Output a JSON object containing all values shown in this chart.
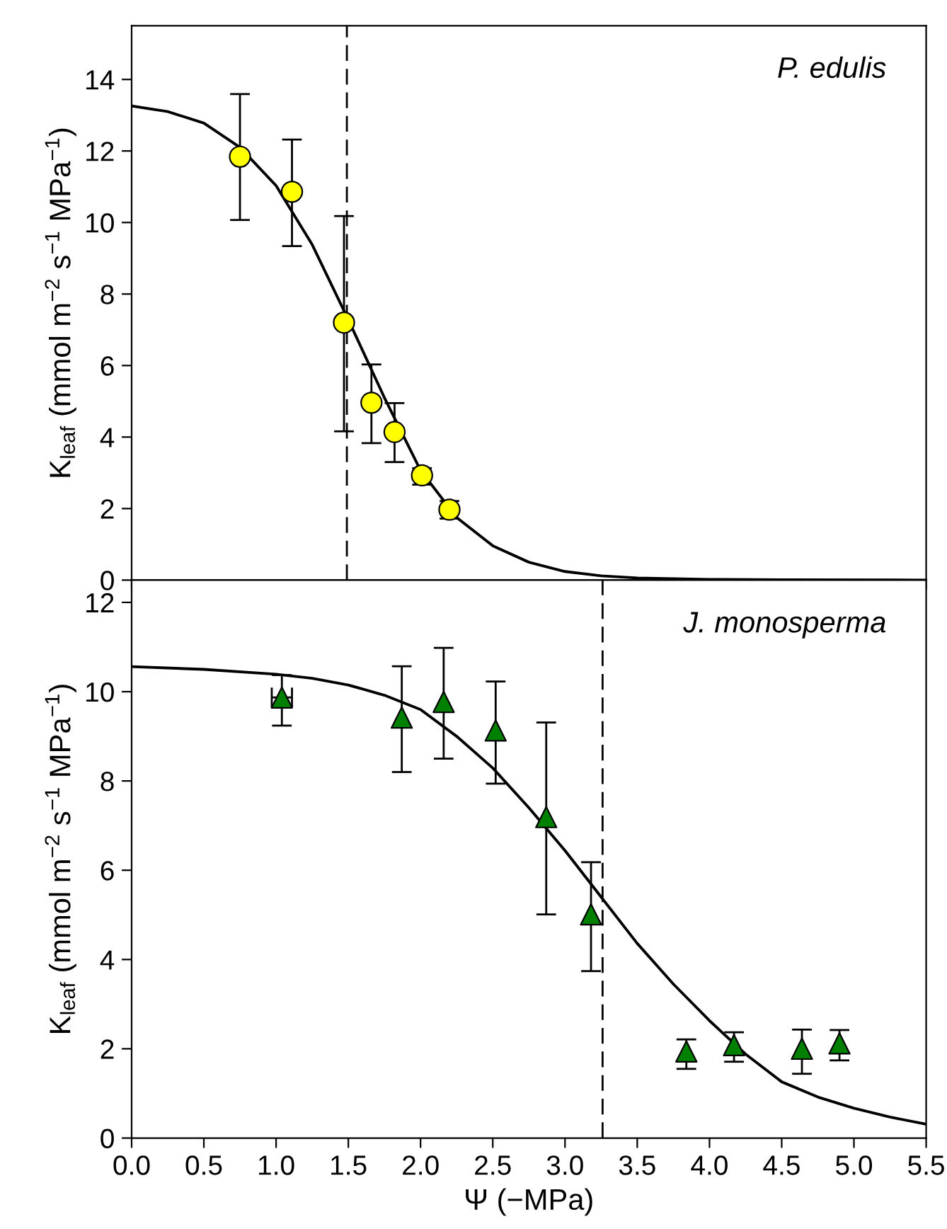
{
  "chart_data": [
    {
      "type": "scatter",
      "annotations": [
        "P. edulis"
      ],
      "ylabel": "K$_{leaf}$ (mmol m$^{−2}$ s$^{−1}$ MPa$^{−1}$)",
      "xlim": [
        0,
        5.5
      ],
      "ylim": [
        0,
        15.5
      ],
      "xticks": [
        {
          "value": 0,
          "label": null
        },
        {
          "value": 0.5,
          "label": null
        },
        {
          "value": 1,
          "label": null
        },
        {
          "value": 1.5,
          "label": null
        },
        {
          "value": 2,
          "label": null
        },
        {
          "value": 2.5,
          "label": null
        },
        {
          "value": 3,
          "label": null
        },
        {
          "value": 3.5,
          "label": null
        },
        {
          "value": 4,
          "label": null
        },
        {
          "value": 4.5,
          "label": null
        },
        {
          "value": 5,
          "label": null
        },
        {
          "value": 5.5,
          "label": null
        }
      ],
      "yticks": [
        0,
        2,
        4,
        6,
        8,
        10,
        12,
        14
      ],
      "tick_labels": "y",
      "grid": false,
      "ref_lines": [
        {
          "axis": "x",
          "value": 1.49,
          "label": null,
          "color": "#000000",
          "line_style": "dashed"
        }
      ],
      "series": [
        {
          "color": "#ffff00",
          "marker": "circle",
          "x": [
            0.75,
            1.11,
            1.47,
            1.66,
            1.82,
            2.01,
            2.2
          ],
          "values": [
            11.84,
            10.86,
            7.2,
            4.96,
            4.14,
            2.93,
            1.97
          ],
          "errors": [
            [
              10.07,
              13.59
            ],
            [
              9.34,
              12.32
            ],
            [
              4.16,
              10.18
            ],
            [
              3.83,
              6.03
            ],
            [
              3.3,
              4.95
            ],
            [
              2.67,
              3.13
            ],
            [
              1.72,
              2.21
            ]
          ]
        },
        {
          "type": "line",
          "color": "#000000",
          "marker": "none",
          "line_style": "solid",
          "x": [
            0,
            0.25,
            0.5,
            0.75,
            1.0,
            1.25,
            1.5,
            1.75,
            2.0,
            2.25,
            2.5,
            2.75,
            3.0,
            3.25,
            3.5,
            4.0,
            4.5,
            5.5
          ],
          "values": [
            13.26,
            13.1,
            12.78,
            12.1,
            11.03,
            9.38,
            7.28,
            5.1,
            3.07,
            1.75,
            0.96,
            0.5,
            0.24,
            0.12,
            0.06,
            0.02,
            0.01,
            0
          ]
        }
      ]
    },
    {
      "type": "scatter",
      "annotations": [
        "J. monosperma"
      ],
      "xlabel": "Ψ (−MPa)",
      "ylabel": "K$_{leaf}$ (mmol m$^{−2}$ s$^{−1}$ MPa$^{−1}$)",
      "xlim": [
        0,
        5.5
      ],
      "ylim": [
        0,
        12.5
      ],
      "xticks": [
        {
          "value": 0,
          "label": "0.0"
        },
        {
          "value": 0.5,
          "label": "0.5"
        },
        {
          "value": 1,
          "label": "1.0"
        },
        {
          "value": 1.5,
          "label": "1.5"
        },
        {
          "value": 2,
          "label": "2.0"
        },
        {
          "value": 2.5,
          "label": "2.5"
        },
        {
          "value": 3,
          "label": "3.0"
        },
        {
          "value": 3.5,
          "label": "3.5"
        },
        {
          "value": 4,
          "label": "4.0"
        },
        {
          "value": 4.5,
          "label": "4.5"
        },
        {
          "value": 5,
          "label": "5.0"
        },
        {
          "value": 5.5,
          "label": "5.5"
        }
      ],
      "yticks": [
        0,
        2,
        4,
        6,
        8,
        10,
        12
      ],
      "grid": false,
      "ref_lines": [
        {
          "axis": "x",
          "value": 3.26,
          "label": null,
          "color": "#000000",
          "line_style": "dashed"
        }
      ],
      "series": [
        {
          "color": "#008000",
          "marker": "triangle",
          "x": [
            1.04,
            1.87,
            2.16,
            2.52,
            2.87,
            3.18,
            3.84,
            4.17,
            4.64,
            4.9
          ],
          "values": [
            9.87,
            9.42,
            9.77,
            9.13,
            7.19,
            5.01,
            1.94,
            2.08,
            2.0,
            2.12
          ],
          "errors": [
            [
              9.24,
              10.37
            ],
            [
              8.2,
              10.57
            ],
            [
              8.5,
              10.98
            ],
            [
              7.94,
              10.23
            ],
            [
              5.01,
              9.31
            ],
            [
              3.74,
              6.18
            ],
            [
              1.55,
              2.21
            ],
            [
              1.71,
              2.37
            ],
            [
              1.44,
              2.43
            ],
            [
              1.74,
              2.42
            ]
          ],
          "xerrors": [
            0.07,
            null,
            null,
            null,
            null,
            null,
            null,
            null,
            null,
            null
          ]
        },
        {
          "type": "line",
          "color": "#000000",
          "marker": "none",
          "line_style": "solid",
          "x": [
            0,
            0.5,
            1.0,
            1.25,
            1.5,
            1.75,
            2.0,
            2.25,
            2.5,
            2.75,
            3.0,
            3.25,
            3.5,
            3.75,
            4.0,
            4.25,
            4.5,
            4.75,
            5.0,
            5.25,
            5.5
          ],
          "values": [
            10.56,
            10.5,
            10.39,
            10.3,
            10.15,
            9.92,
            9.6,
            9.0,
            8.29,
            7.4,
            6.44,
            5.4,
            4.36,
            3.45,
            2.63,
            1.88,
            1.26,
            0.92,
            0.67,
            0.47,
            0.31
          ]
        }
      ]
    }
  ]
}
